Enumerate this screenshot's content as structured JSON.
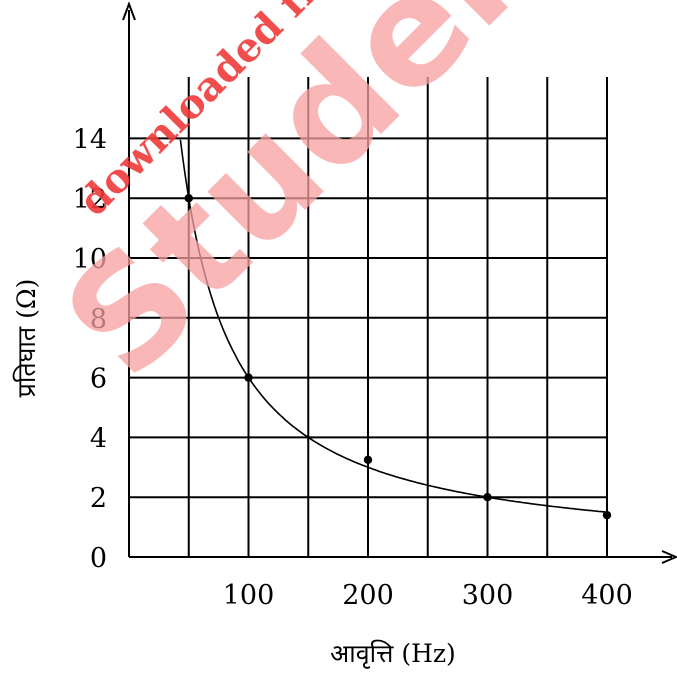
{
  "watermark": {
    "line1": "downloaded from",
    "line2": "StudentSu"
  },
  "chart_data": {
    "type": "line",
    "xlabel": "आवृत्ति (Hz)",
    "ylabel": "प्रतिघात (Ω)",
    "xlim": [
      0,
      460
    ],
    "ylim": [
      0,
      16
    ],
    "x_ticks": [
      100,
      200,
      300,
      400
    ],
    "y_ticks": [
      0,
      2,
      4,
      6,
      8,
      10,
      12,
      14
    ],
    "grid": true,
    "series": [
      {
        "points": [
          {
            "x": 50,
            "y": 12
          },
          {
            "x": 100,
            "y": 6
          },
          {
            "x": 200,
            "y": 3.25
          },
          {
            "x": 300,
            "y": 2
          },
          {
            "x": 400,
            "y": 1.4
          }
        ]
      }
    ]
  }
}
